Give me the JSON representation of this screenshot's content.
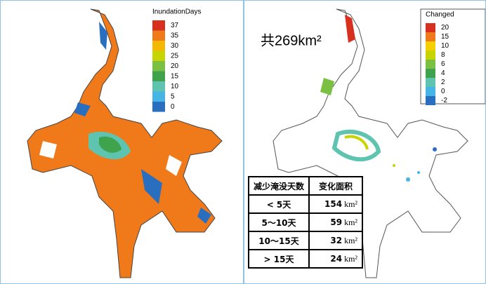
{
  "left_map": {
    "legend": {
      "title": "InundationDays",
      "labels": [
        "37",
        "35",
        "30",
        "25",
        "20",
        "15",
        "10",
        "5",
        "0"
      ],
      "colors": [
        "#d7301f",
        "#f07a1a",
        "#f5b800",
        "#c8d400",
        "#7ac143",
        "#3fa34d",
        "#5ec4b0",
        "#45b5e6",
        "#2a6fbf"
      ]
    }
  },
  "right_map": {
    "total": "共269km²",
    "legend": {
      "title": "Changed",
      "labels": [
        "20",
        "15",
        "10",
        "8",
        "6",
        "4",
        "2",
        "0",
        "-2"
      ],
      "colors": [
        "#d7301f",
        "#f07a1a",
        "#f5d000",
        "#c8d400",
        "#7ac143",
        "#3fa34d",
        "#5ec4b0",
        "#45b5e6",
        "#2a6fbf"
      ]
    }
  },
  "table": {
    "header": [
      "减少淹没天数",
      "变化面积"
    ],
    "rows": [
      [
        "< 5天",
        "154",
        "km²"
      ],
      [
        "5～10天",
        "59",
        "km²"
      ],
      [
        "10～15天",
        "32",
        "km²"
      ],
      [
        "> 15天",
        "24",
        "km²"
      ]
    ]
  }
}
